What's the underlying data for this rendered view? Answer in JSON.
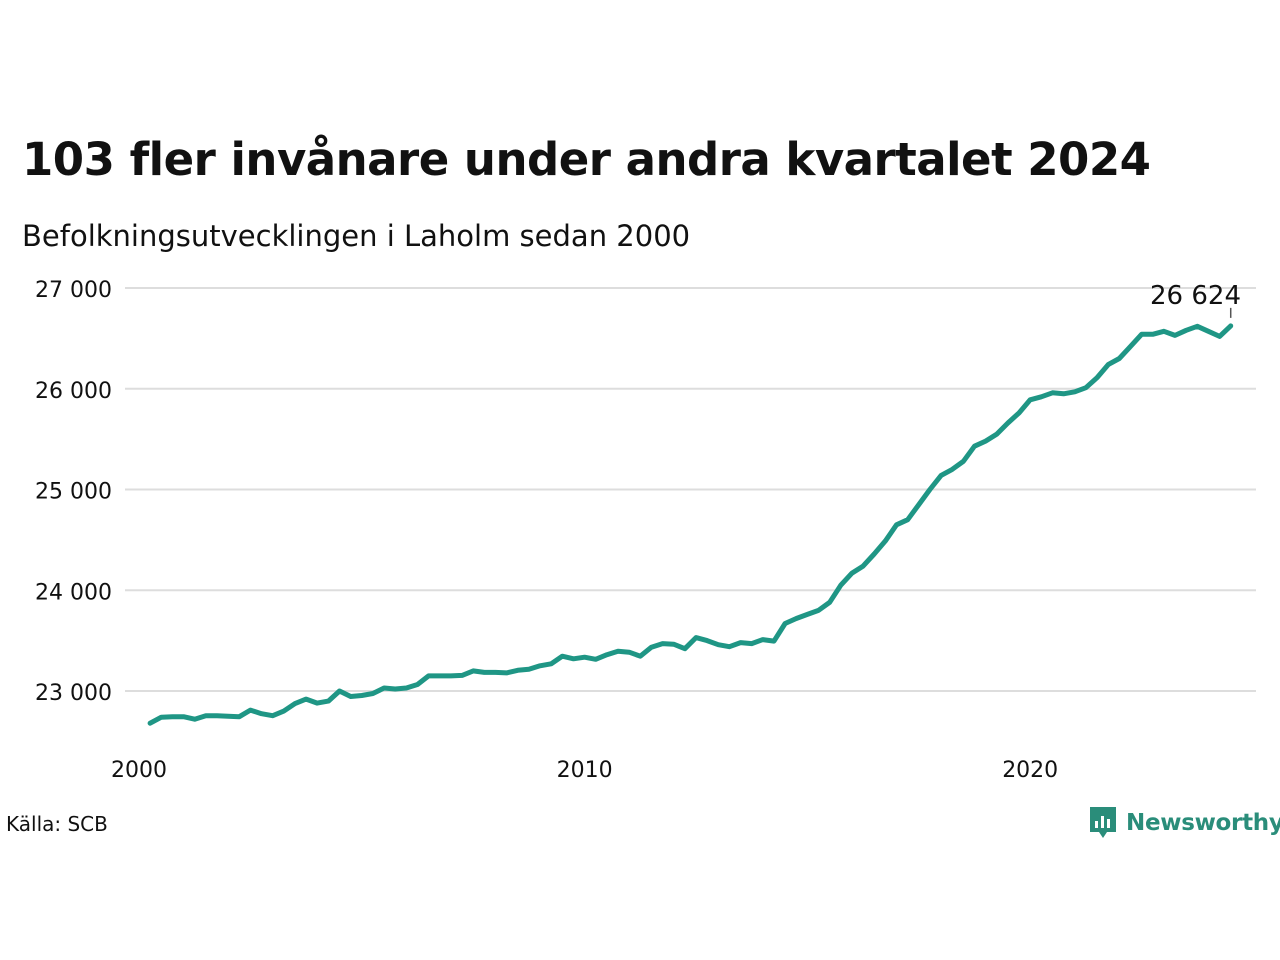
{
  "title": "103 fler invånare under andra kvartalet 2024",
  "subtitle": "Befolkningsutvecklingen i Laholm sedan 2000",
  "source": "Källa: SCB",
  "brand": "Newsworthy",
  "colors": {
    "line": "#1f9685",
    "grid": "#dddddd",
    "brand": "#2a8d7a",
    "text": "#111111"
  },
  "chart_data": {
    "type": "line",
    "title": "103 fler invånare under andra kvartalet 2024",
    "subtitle": "Befolkningsutvecklingen i Laholm sedan 2000",
    "xlabel": "",
    "ylabel": "",
    "xlim": [
      2000,
      2025
    ],
    "ylim": [
      22500,
      27000
    ],
    "x_ticks": [
      2000,
      2010,
      2020
    ],
    "x_tick_labels": [
      "2000",
      "2010",
      "2020"
    ],
    "y_ticks": [
      23000,
      24000,
      25000,
      26000,
      27000
    ],
    "y_tick_labels": [
      "23 000",
      "24 000",
      "25 000",
      "26 000",
      "27 000"
    ],
    "grid": true,
    "legend": "none",
    "end_label": "26 624",
    "series": [
      {
        "x": [
          2000.25,
          2000.5,
          2000.75,
          2001.0,
          2001.25,
          2001.5,
          2001.75,
          2002.0,
          2002.25,
          2002.5,
          2002.75,
          2003.0,
          2003.25,
          2003.5,
          2003.75,
          2004.0,
          2004.25,
          2004.5,
          2004.75,
          2005.0,
          2005.25,
          2005.5,
          2005.75,
          2006.0,
          2006.25,
          2006.5,
          2006.75,
          2007.0,
          2007.25,
          2007.5,
          2007.75,
          2008.0,
          2008.25,
          2008.5,
          2008.75,
          2009.0,
          2009.25,
          2009.5,
          2009.75,
          2010.0,
          2010.25,
          2010.5,
          2010.75,
          2011.0,
          2011.25,
          2011.5,
          2011.75,
          2012.0,
          2012.25,
          2012.5,
          2012.75,
          2013.0,
          2013.25,
          2013.5,
          2013.75,
          2014.0,
          2014.25,
          2014.5,
          2014.75,
          2015.0,
          2015.25,
          2015.5,
          2015.75,
          2016.0,
          2016.25,
          2016.5,
          2016.75,
          2017.0,
          2017.25,
          2017.5,
          2017.75,
          2018.0,
          2018.25,
          2018.5,
          2018.75,
          2019.0,
          2019.25,
          2019.5,
          2019.75,
          2020.0,
          2020.25,
          2020.5,
          2020.75,
          2021.0,
          2021.25,
          2021.5,
          2021.75,
          2022.0,
          2022.25,
          2022.5,
          2022.75,
          2023.0,
          2023.25,
          2023.5,
          2023.75,
          2024.0,
          2024.25,
          2024.5
        ],
        "y": [
          22680,
          22740,
          22745,
          22745,
          22720,
          22755,
          22755,
          22750,
          22745,
          22810,
          22775,
          22755,
          22800,
          22875,
          22920,
          22880,
          22900,
          23000,
          22945,
          22955,
          22975,
          23030,
          23020,
          23030,
          23065,
          23150,
          23150,
          23150,
          23155,
          23200,
          23185,
          23185,
          23180,
          23205,
          23215,
          23250,
          23270,
          23345,
          23320,
          23335,
          23315,
          23360,
          23395,
          23385,
          23345,
          23435,
          23470,
          23465,
          23420,
          23530,
          23500,
          23460,
          23440,
          23480,
          23470,
          23510,
          23495,
          23670,
          23720,
          23760,
          23800,
          23880,
          24050,
          24170,
          24240,
          24360,
          24490,
          24650,
          24700,
          24850,
          25000,
          25140,
          25200,
          25280,
          25430,
          25480,
          25550,
          25660,
          25760,
          25890,
          25920,
          25960,
          25950,
          25970,
          26010,
          26110,
          26240,
          26300,
          26420,
          26540,
          26540,
          26570,
          26530,
          26580,
          26620,
          26570,
          26520,
          26624
        ]
      }
    ]
  }
}
